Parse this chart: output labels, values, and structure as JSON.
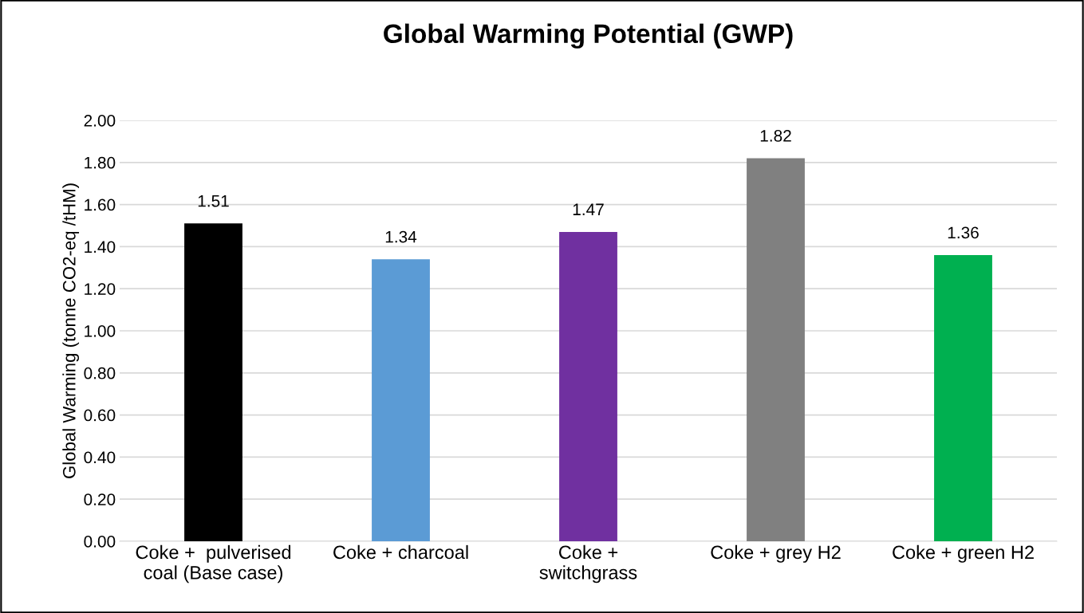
{
  "chart_data": {
    "type": "bar",
    "title": "Global Warming Potential (GWP)",
    "ylabel": "Global Warming (tonne CO2-eq /tHM)",
    "categories": [
      "Coke +  pulverised\ncoal (Base case)",
      "Coke + charcoal",
      "Coke +\nswitchgrass",
      "Coke + grey H2",
      "Coke + green H2"
    ],
    "values": [
      1.51,
      1.34,
      1.47,
      1.82,
      1.36
    ],
    "colors": [
      "#000000",
      "#5b9bd5",
      "#7030a0",
      "#808080",
      "#00b050"
    ],
    "ylim": [
      0,
      2
    ],
    "yticks": [
      {
        "value": 0,
        "label": "0.00"
      },
      {
        "value": 0.2,
        "label": "0.20"
      },
      {
        "value": 0.4,
        "label": "0.40"
      },
      {
        "value": 0.6,
        "label": "0.60"
      },
      {
        "value": 0.8,
        "label": "0.80"
      },
      {
        "value": 1.0,
        "label": "1.00"
      },
      {
        "value": 1.2,
        "label": "1.20"
      },
      {
        "value": 1.4,
        "label": "1.40"
      },
      {
        "value": 1.6,
        "label": "1.60"
      },
      {
        "value": 1.8,
        "label": "1.80"
      },
      {
        "value": 2.0,
        "label": "2.00"
      }
    ],
    "grid": "y",
    "data_labels": true
  }
}
